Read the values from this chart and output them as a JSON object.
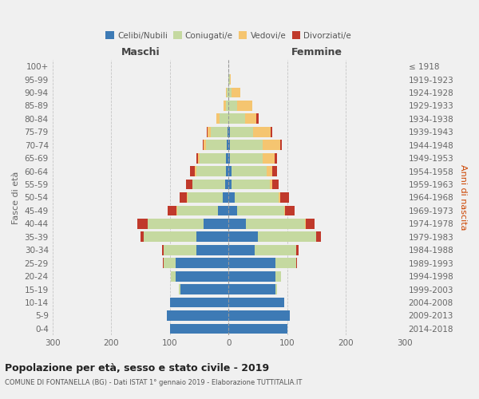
{
  "age_groups": [
    "0-4",
    "5-9",
    "10-14",
    "15-19",
    "20-24",
    "25-29",
    "30-34",
    "35-39",
    "40-44",
    "45-49",
    "50-54",
    "55-59",
    "60-64",
    "65-69",
    "70-74",
    "75-79",
    "80-84",
    "85-89",
    "90-94",
    "95-99",
    "100+"
  ],
  "birth_years": [
    "2014-2018",
    "2009-2013",
    "2004-2008",
    "1999-2003",
    "1994-1998",
    "1989-1993",
    "1984-1988",
    "1979-1983",
    "1974-1978",
    "1969-1973",
    "1964-1968",
    "1959-1963",
    "1954-1958",
    "1949-1953",
    "1944-1948",
    "1939-1943",
    "1934-1938",
    "1929-1933",
    "1924-1928",
    "1919-1923",
    "≤ 1918"
  ],
  "males": {
    "celibi": [
      100,
      105,
      100,
      82,
      90,
      90,
      55,
      55,
      42,
      18,
      10,
      6,
      5,
      4,
      3,
      2,
      0,
      0,
      0,
      0,
      0
    ],
    "coniugati": [
      0,
      0,
      0,
      2,
      8,
      20,
      55,
      90,
      95,
      70,
      60,
      55,
      50,
      45,
      35,
      28,
      15,
      5,
      3,
      0,
      0
    ],
    "vedovi": [
      0,
      0,
      0,
      0,
      0,
      0,
      0,
      0,
      0,
      1,
      1,
      1,
      2,
      3,
      4,
      5,
      5,
      4,
      2,
      0,
      0
    ],
    "divorziati": [
      0,
      0,
      0,
      0,
      0,
      2,
      3,
      5,
      18,
      15,
      12,
      10,
      8,
      3,
      2,
      2,
      0,
      0,
      0,
      0,
      0
    ]
  },
  "females": {
    "nubili": [
      100,
      105,
      95,
      80,
      80,
      80,
      45,
      50,
      30,
      15,
      10,
      5,
      5,
      3,
      3,
      2,
      0,
      0,
      0,
      0,
      0
    ],
    "coniugate": [
      0,
      0,
      0,
      3,
      10,
      35,
      70,
      100,
      100,
      80,
      75,
      65,
      60,
      55,
      55,
      40,
      28,
      15,
      5,
      2,
      0
    ],
    "vedove": [
      0,
      0,
      0,
      0,
      0,
      0,
      0,
      0,
      2,
      2,
      3,
      5,
      10,
      20,
      30,
      30,
      20,
      25,
      15,
      2,
      0
    ],
    "divorziate": [
      0,
      0,
      0,
      0,
      0,
      2,
      5,
      8,
      15,
      15,
      15,
      10,
      8,
      5,
      3,
      3,
      3,
      0,
      0,
      0,
      0
    ]
  },
  "colors": {
    "celibi": "#3d7ab5",
    "coniugati": "#c5d9a0",
    "vedovi": "#f5c570",
    "divorziati": "#c0392b"
  },
  "title": "Popolazione per età, sesso e stato civile - 2019",
  "subtitle": "COMUNE DI FONTANELLA (BG) - Dati ISTAT 1° gennaio 2019 - Elaborazione TUTTITALIA.IT",
  "xlabel_left": "Maschi",
  "xlabel_right": "Femmine",
  "ylabel_left": "Fasce di età",
  "ylabel_right": "Anni di nascita",
  "xlim": 300,
  "bg_color": "#f0f0f0",
  "legend_labels": [
    "Celibi/Nubili",
    "Coniugati/e",
    "Vedovi/e",
    "Divorziati/e"
  ]
}
